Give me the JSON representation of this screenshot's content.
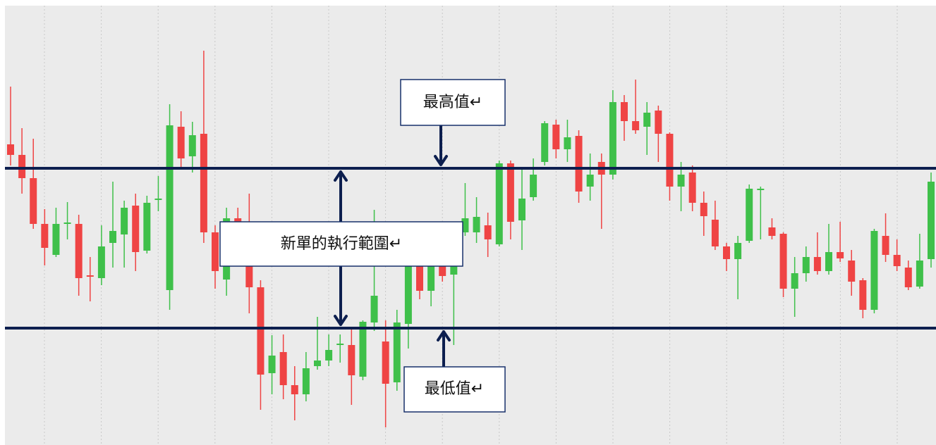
{
  "chart_data": {
    "type": "candlestick",
    "open": [
      427,
      412,
      379,
      314,
      270,
      314,
      314,
      241,
      237,
      287,
      299,
      340,
      276,
      348,
      220,
      452,
      410,
      442,
      302,
      235,
      322,
      262,
      224,
      102,
      132,
      85,
      72,
      112,
      120,
      142,
      142,
      97,
      174,
      147,
      89,
      172,
      257,
      219,
      254,
      242,
      302,
      302,
      312,
      285,
      400,
      319,
      352,
      402,
      455,
      420,
      439,
      367,
      402,
      384,
      487,
      460,
      452,
      475,
      442,
      367,
      387,
      344,
      320,
      282,
      264,
      290,
      362,
      309,
      300,
      222,
      244,
      267,
      247,
      274,
      262,
      234,
      192,
      297,
      270,
      252,
      225,
      264
    ],
    "high": [
      509,
      450,
      435,
      335,
      337,
      345,
      327,
      267,
      312,
      374,
      347,
      357,
      354,
      382,
      484,
      474,
      459,
      560,
      312,
      337,
      337,
      357,
      234,
      156,
      157,
      112,
      132,
      182,
      157,
      157,
      167,
      177,
      334,
      177,
      192,
      267,
      272,
      267,
      262,
      307,
      372,
      352,
      330,
      404,
      404,
      392,
      407,
      460,
      462,
      462,
      447,
      414,
      414,
      504,
      497,
      519,
      487,
      482,
      444,
      402,
      397,
      360,
      347,
      287,
      297,
      370,
      367,
      322,
      302,
      267,
      282,
      302,
      314,
      317,
      277,
      237,
      307,
      329,
      292,
      262,
      300,
      387
    ],
    "low": [
      397,
      357,
      307,
      255,
      267,
      292,
      212,
      204,
      227,
      252,
      252,
      247,
      272,
      332,
      192,
      392,
      387,
      287,
      222,
      212,
      262,
      187,
      50,
      72,
      65,
      35,
      62,
      107,
      112,
      117,
      57,
      92,
      162,
      25,
      77,
      137,
      207,
      197,
      232,
      142,
      297,
      287,
      267,
      282,
      292,
      277,
      347,
      397,
      407,
      402,
      344,
      347,
      307,
      377,
      432,
      442,
      412,
      402,
      347,
      332,
      332,
      297,
      277,
      247,
      207,
      287,
      292,
      292,
      210,
      182,
      232,
      242,
      242,
      260,
      212,
      180,
      187,
      260,
      247,
      220,
      222,
      252
    ],
    "close": [
      412,
      379,
      314,
      280,
      314,
      316,
      237,
      239,
      282,
      304,
      337,
      274,
      344,
      350,
      454,
      407,
      440,
      302,
      247,
      322,
      287,
      224,
      100,
      127,
      85,
      72,
      109,
      120,
      135,
      144,
      99,
      175,
      212,
      87,
      174,
      262,
      219,
      254,
      240,
      302,
      322,
      324,
      292,
      400,
      317,
      350,
      384,
      457,
      420,
      437,
      360,
      384,
      384,
      487,
      460,
      447,
      472,
      442,
      367,
      384,
      344,
      325,
      282,
      264,
      287,
      364,
      364,
      297,
      222,
      244,
      267,
      247,
      274,
      265,
      232,
      192,
      304,
      270,
      254,
      224,
      262,
      374
    ],
    "up_color": "#3fc04a",
    "down_color": "#ef4444",
    "line_color": "#0d1f4f",
    "ylim": [
      0,
      632
    ],
    "range_high": {
      "value": 393,
      "label": "最高值↵"
    },
    "range_low": {
      "value": 166,
      "label": "最低值↵"
    },
    "range_label": "新單的執行範圍↵"
  }
}
